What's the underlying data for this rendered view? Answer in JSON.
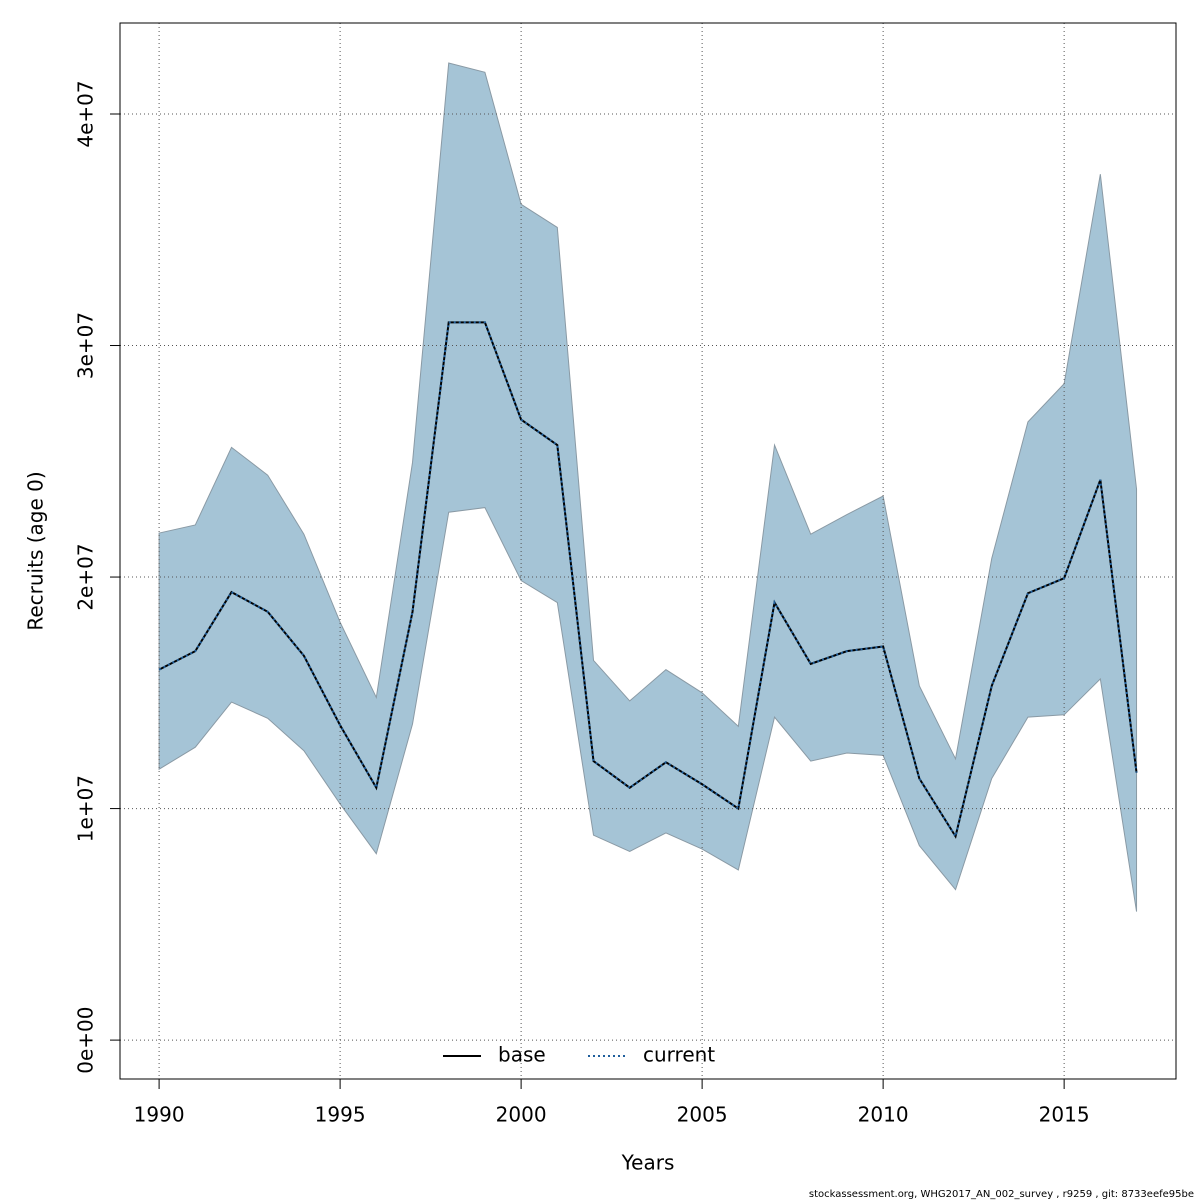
{
  "chart_data": {
    "type": "line",
    "xlabel": "Years",
    "ylabel": "Recruits (age 0)",
    "footer": "stockassessment.org, WHG2017_AN_002_survey , r9259 , git: 8733eefe95be",
    "x": [
      1990,
      1991,
      1992,
      1993,
      1994,
      1995,
      1996,
      1997,
      1998,
      1999,
      2000,
      2001,
      2002,
      2003,
      2004,
      2005,
      2006,
      2007,
      2008,
      2009,
      2010,
      2011,
      2012,
      2013,
      2014,
      2015,
      2016,
      2017
    ],
    "series": [
      {
        "name": "base",
        "color": "#000000",
        "dash": false,
        "values": [
          16000000,
          16800000,
          19350000,
          18500000,
          16600000,
          13600000,
          10900000,
          18500000,
          31000000,
          31000000,
          26800000,
          25700000,
          12050000,
          10900000,
          12000000,
          11050000,
          10000000,
          18900000,
          16250000,
          16800000,
          17000000,
          11300000,
          8800000,
          15300000,
          19300000,
          19950000,
          24200000,
          11550000
        ]
      },
      {
        "name": "current",
        "color": "#1f5f9c",
        "dash": true,
        "values": [
          16000000,
          16800000,
          19350000,
          18500000,
          16600000,
          13600000,
          10900000,
          18500000,
          31000000,
          31000000,
          26800000,
          25700000,
          12050000,
          10900000,
          12000000,
          11050000,
          10000000,
          18900000,
          16250000,
          16800000,
          17000000,
          11300000,
          8800000,
          15300000,
          19300000,
          19950000,
          24200000,
          11550000
        ]
      }
    ],
    "band": {
      "color": "#a5c4d6",
      "upper": [
        21900000,
        22250000,
        25600000,
        24400000,
        21850000,
        18050000,
        14800000,
        24950000,
        42200000,
        41800000,
        36100000,
        35100000,
        16400000,
        14650000,
        16000000,
        15000000,
        13550000,
        25700000,
        21850000,
        22700000,
        23500000,
        15300000,
        12150000,
        20800000,
        26700000,
        28350000,
        37400000,
        23800000
      ],
      "lower": [
        11700000,
        12650000,
        14600000,
        13900000,
        12500000,
        10200000,
        8050000,
        13650000,
        22800000,
        23000000,
        19850000,
        18900000,
        8850000,
        8150000,
        8950000,
        8250000,
        7350000,
        13950000,
        12050000,
        12400000,
        12300000,
        8400000,
        6500000,
        11300000,
        13950000,
        14050000,
        15600000,
        5550000
      ]
    },
    "xlim": [
      1988.92,
      2018.09
    ],
    "ylim": [
      -1680000,
      43930000
    ],
    "xticks": [
      1990,
      1995,
      2000,
      2005,
      2010,
      2015
    ],
    "yticks": [
      {
        "value": 0,
        "label": "0e+00"
      },
      {
        "value": 10000000,
        "label": "1e+07"
      },
      {
        "value": 20000000,
        "label": "2e+07"
      },
      {
        "value": 30000000,
        "label": "3e+07"
      },
      {
        "value": 40000000,
        "label": "4e+07"
      }
    ],
    "grid": true,
    "legend": "bottom"
  }
}
